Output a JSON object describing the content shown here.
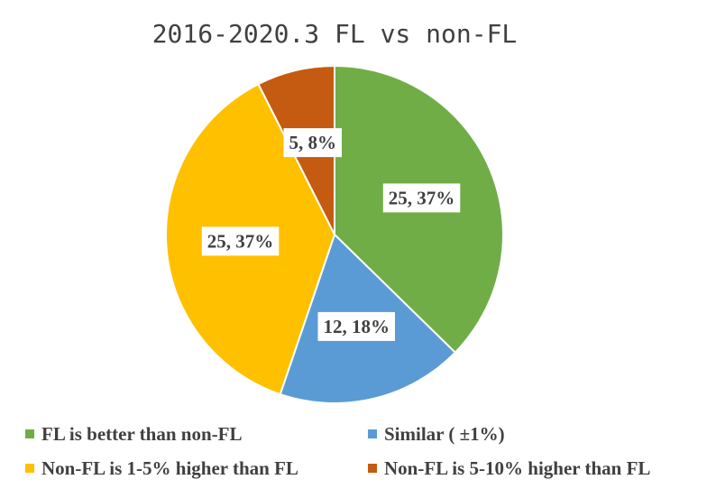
{
  "chart_data": {
    "type": "pie",
    "title": "2016-2020.3 FL vs non-FL",
    "slices": [
      {
        "name": "FL is better than non-FL",
        "value": 25,
        "percent": "37%",
        "label": "25, 37%",
        "color": "#70AD47"
      },
      {
        "name": "Similar ( ±1%)",
        "value": 12,
        "percent": "18%",
        "label": "12, 18%",
        "color": "#5B9BD5"
      },
      {
        "name": "Non-FL is 1-5% higher than FL",
        "value": 25,
        "percent": "37%",
        "label": "25, 37%",
        "color": "#FFC000"
      },
      {
        "name": "Non-FL is 5-10% higher than FL",
        "value": 5,
        "percent": "8%",
        "label": "5, 8%",
        "color": "#C55A11"
      }
    ],
    "legend_position": "bottom"
  }
}
